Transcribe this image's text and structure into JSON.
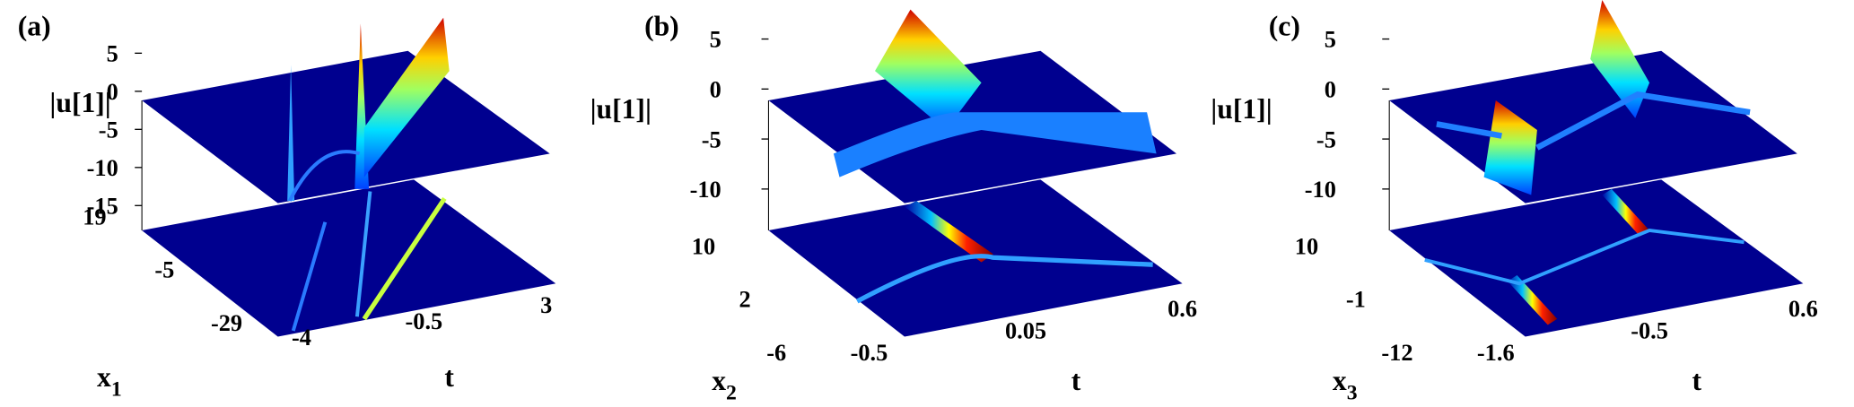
{
  "panels": [
    {
      "label": "(a)",
      "z_label": "|u[1]|",
      "z_ticks": [
        5,
        0,
        -5,
        -10,
        -15
      ],
      "x_label": "x",
      "x_subscript": "1",
      "x_ticks": [
        19,
        -5,
        -29
      ],
      "t_label": "t",
      "t_ticks": [
        -4,
        -0.5,
        3
      ]
    },
    {
      "label": "(b)",
      "z_label": "|u[1]|",
      "z_ticks": [
        5,
        0,
        -5,
        -10
      ],
      "x_label": "x",
      "x_subscript": "2",
      "x_ticks": [
        10,
        2,
        -6
      ],
      "t_label": "t",
      "t_ticks": [
        -0.5,
        0.05,
        0.6
      ]
    },
    {
      "label": "(c)",
      "z_label": "|u[1]|",
      "z_ticks": [
        5,
        0,
        -5,
        -10
      ],
      "x_label": "x",
      "x_subscript": "3",
      "x_ticks": [
        10,
        -1,
        -12
      ],
      "t_label": "t",
      "t_ticks": [
        -1.6,
        -0.5,
        0.6
      ]
    }
  ]
}
